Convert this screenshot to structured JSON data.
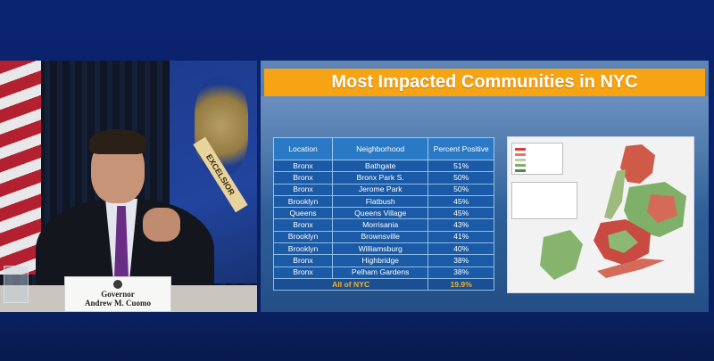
{
  "slide": {
    "title": "Most Impacted Communities in NYC",
    "table": {
      "headers": [
        "Location",
        "Neighborhood",
        "Percent Positive"
      ],
      "rows": [
        [
          "Bronx",
          "Bathgate",
          "51%"
        ],
        [
          "Bronx",
          "Bronx Park S.",
          "50%"
        ],
        [
          "Bronx",
          "Jerome Park",
          "50%"
        ],
        [
          "Brooklyn",
          "Flatbush",
          "45%"
        ],
        [
          "Queens",
          "Queens Village",
          "45%"
        ],
        [
          "Bronx",
          "Morrisania",
          "43%"
        ],
        [
          "Brooklyn",
          "Brownsville",
          "41%"
        ],
        [
          "Brooklyn",
          "Williamsburg",
          "40%"
        ],
        [
          "Bronx",
          "Highbridge",
          "38%"
        ],
        [
          "Bronx",
          "Pelham Gardens",
          "38%"
        ]
      ],
      "total": [
        "All of NYC",
        "",
        "19.9%"
      ]
    },
    "map": {
      "legend_colors": [
        "#cf3f37",
        "#e07a62",
        "#b9cfa3",
        "#7fb069",
        "#4d8a4a"
      ]
    }
  },
  "video": {
    "nameplate_line1": "Governor",
    "nameplate_line2": "Andrew M. Cuomo",
    "flag_ribbon": "EXCELSIOR"
  },
  "colors": {
    "title_bar": "#f6a314",
    "table_header": "#2a79c4",
    "table_cell": "#1a5aa6",
    "total_text": "#f5b324",
    "frame": "#0a1f66"
  }
}
